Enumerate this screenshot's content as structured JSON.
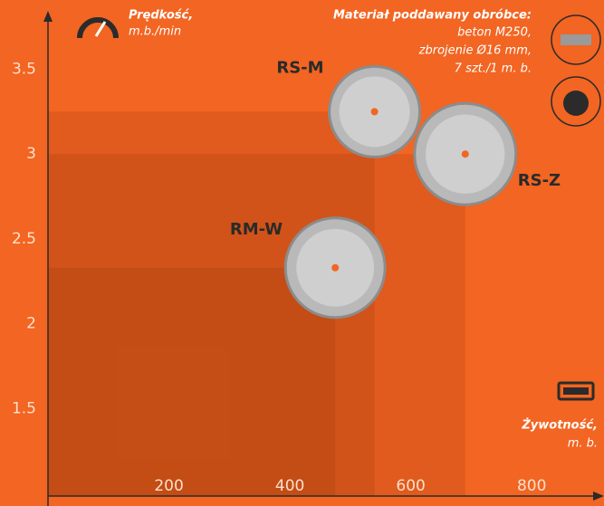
{
  "chart_data": {
    "type": "scatter",
    "ylabel": "Prędkość,",
    "ylabel_unit": "m.b./min",
    "xlabel": "Żywotność,",
    "xlabel_unit": "m. b.",
    "material": {
      "title": "Materiał poddawany obróbce:",
      "lines": [
        "beton M250,",
        "zbrojenie Ø16 mm,",
        "7 szt./1 m. b."
      ]
    },
    "xlim": [
      0,
      915
    ],
    "ylim": [
      1,
      3.8
    ],
    "xticks": [
      200,
      400,
      600,
      800
    ],
    "yticks": [
      1.5,
      2,
      2.5,
      3,
      3.5
    ],
    "series": [
      {
        "name": "RS-M",
        "x": [
          540
        ],
        "values": [
          3.25
        ]
      },
      {
        "name": "RS-Z",
        "x": [
          690
        ],
        "values": [
          3.0
        ]
      },
      {
        "name": "RM-W",
        "x": [
          475
        ],
        "values": [
          2.33
        ]
      }
    ]
  }
}
